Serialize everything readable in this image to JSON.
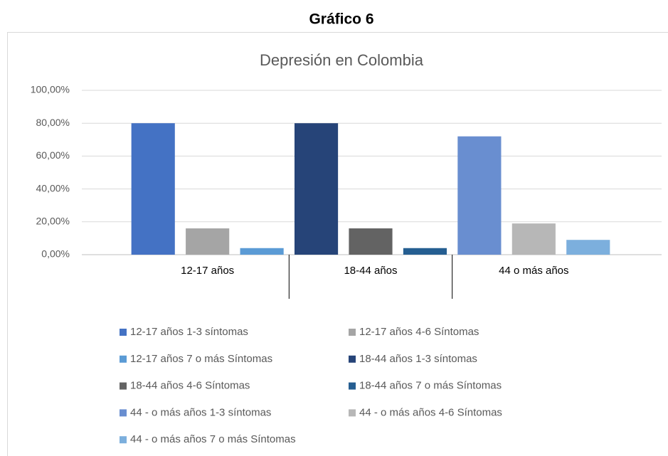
{
  "chart_data": {
    "type": "bar",
    "heading": "Gráfico 6",
    "title": "Depresión en Colombia",
    "categories": [
      "12-17 años",
      "18-44 años",
      "44 o más años"
    ],
    "series": [
      {
        "name": "12-17 años 1-3 síntomas",
        "color": "#4472c4",
        "values": [
          80,
          null,
          null
        ]
      },
      {
        "name": "12-17 años 4-6 Síntomas",
        "color": "#a5a5a5",
        "values": [
          16,
          null,
          null
        ]
      },
      {
        "name": "12-17 años 7 o más Síntomas",
        "color": "#5b9bd5",
        "values": [
          4,
          null,
          null
        ]
      },
      {
        "name": "18-44 años 1-3 síntomas",
        "color": "#264478",
        "values": [
          null,
          80,
          null
        ]
      },
      {
        "name": "18-44 años 4-6 Síntomas",
        "color": "#636363",
        "values": [
          null,
          16,
          null
        ]
      },
      {
        "name": "18-44 años 7 o más Síntomas",
        "color": "#255e91",
        "values": [
          null,
          4,
          null
        ]
      },
      {
        "name": "44 - o más años 1-3 síntomas",
        "color": "#698ed0",
        "values": [
          null,
          null,
          72
        ]
      },
      {
        "name": "44 - o más años 4-6 Síntomas",
        "color": "#b7b7b7",
        "values": [
          null,
          null,
          19
        ]
      },
      {
        "name": "44 - o más años 7 o más Síntomas",
        "color": "#7cafdd",
        "values": [
          null,
          null,
          9
        ]
      }
    ],
    "ylim": [
      0,
      100
    ],
    "yticks": [
      {
        "value": 0,
        "label": "0,00%"
      },
      {
        "value": 20,
        "label": "20,00%"
      },
      {
        "value": 40,
        "label": "40,00%"
      },
      {
        "value": 60,
        "label": "60,00%"
      },
      {
        "value": 80,
        "label": "80,00%"
      },
      {
        "value": 100,
        "label": "100,00%"
      }
    ],
    "grid": true,
    "legend": "bottom"
  }
}
